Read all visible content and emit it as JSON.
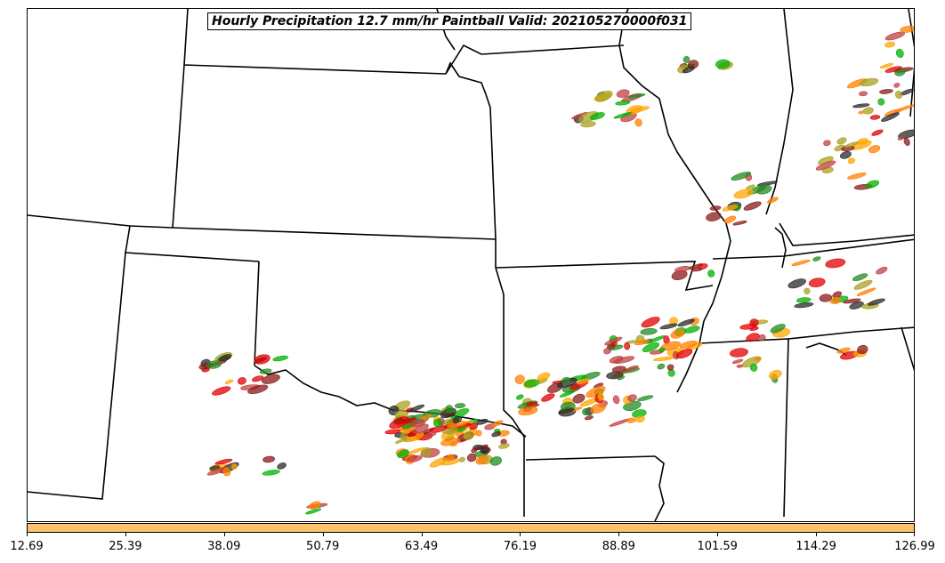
{
  "title": "Hourly Precipitation 12.7 mm/hr Paintball Valid: 202105270000f031",
  "colorbar": {
    "color": "#fdc36a",
    "ticks": [
      "12.69",
      "25.39",
      "38.09",
      "50.79",
      "63.49",
      "76.19",
      "88.89",
      "101.59",
      "114.29",
      "126.99"
    ]
  },
  "map": {
    "region": "Central United States",
    "boundary_color": "#000000",
    "member_colors": [
      "#2a2a2a",
      "#8b1a1a",
      "#e00000",
      "#ff7f00",
      "#ffa500",
      "#a8a020",
      "#00b000",
      "#228b22",
      "#c04040"
    ]
  }
}
